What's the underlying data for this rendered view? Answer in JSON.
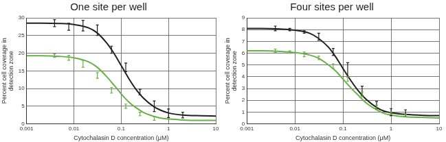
{
  "chart_data": [
    {
      "type": "line",
      "title": "One site per well",
      "xlabel": "Cytochalasin D concentration (μM)",
      "ylabel": [
        "Percent cell coverage in",
        "detection zone"
      ],
      "log": "x",
      "grid": true,
      "xlim": [
        0.001,
        10
      ],
      "xticks": [
        0.001,
        0.01,
        0.1,
        1,
        10
      ],
      "ylim": [
        0,
        30
      ],
      "yticks": [
        0,
        5,
        10,
        15,
        20,
        25,
        30
      ],
      "series": [
        {
          "type": "line",
          "color": "#231f20",
          "x": [
            0.001,
            0.002,
            0.005,
            0.01,
            0.02,
            0.03,
            0.05,
            0.07,
            0.1,
            0.15,
            0.2,
            0.3,
            0.5,
            0.7,
            1,
            2,
            5,
            10
          ],
          "values": [
            28.5,
            28.5,
            28.4,
            28.1,
            27.2,
            25.9,
            22.8,
            20,
            16.5,
            12.5,
            10,
            7.2,
            4.8,
            3.8,
            3.1,
            2.5,
            2.3,
            2.2
          ]
        },
        {
          "type": "line",
          "color": "#66b245",
          "x": [
            0.001,
            0.002,
            0.005,
            0.01,
            0.02,
            0.03,
            0.05,
            0.07,
            0.1,
            0.15,
            0.2,
            0.3,
            0.5,
            0.7,
            1,
            2,
            5,
            10
          ],
          "values": [
            19.3,
            19.3,
            19.1,
            18.7,
            17.6,
            16.2,
            13.3,
            11,
            8.5,
            6,
            4.7,
            3.2,
            2.1,
            1.6,
            1.4,
            1.1,
            1,
            1
          ]
        },
        {
          "type": "scatter",
          "marker": "none",
          "color": "#231f20",
          "x": [
            0.0039,
            0.0078,
            0.0156,
            0.0313,
            0.0625,
            0.125,
            0.25,
            0.5,
            1,
            2
          ],
          "values": [
            28.5,
            27.5,
            27.8,
            26.5,
            21,
            16,
            9,
            5,
            3,
            2.5
          ],
          "errors": [
            1,
            1,
            1.5,
            1.5,
            1,
            1.2,
            0.8,
            1.5,
            1.2,
            0.8
          ]
        },
        {
          "type": "scatter",
          "marker": "none",
          "color": "#66b245",
          "x": [
            0.0039,
            0.0078,
            0.0156,
            0.0313,
            0.0625,
            0.125,
            0.25,
            0.5
          ],
          "values": [
            19.3,
            18.7,
            17,
            13.7,
            9.5,
            5,
            2.8,
            1.5
          ],
          "errors": [
            0.5,
            0.7,
            1,
            0.8,
            0.8,
            0.6,
            0.5,
            0.5
          ]
        }
      ]
    },
    {
      "type": "line",
      "title": "Four sites per well",
      "xlabel": "Cytochalasin D concentration (μM)",
      "ylabel": [
        "Percent cell coverage in",
        "detection zone"
      ],
      "log": "x",
      "grid": true,
      "xlim": [
        0.001,
        10
      ],
      "xticks": [
        0.001,
        0.01,
        0.1,
        1,
        10
      ],
      "ylim": [
        0,
        9
      ],
      "yticks": [
        0,
        1,
        2,
        3,
        4,
        5,
        6,
        7,
        8,
        9
      ],
      "series": [
        {
          "type": "line",
          "color": "#231f20",
          "x": [
            0.001,
            0.002,
            0.005,
            0.01,
            0.02,
            0.03,
            0.05,
            0.07,
            0.1,
            0.15,
            0.2,
            0.3,
            0.5,
            0.7,
            1,
            2,
            5,
            10
          ],
          "values": [
            8.1,
            8.1,
            8.05,
            7.95,
            7.7,
            7.3,
            6.5,
            5.7,
            4.7,
            3.6,
            2.9,
            2.1,
            1.4,
            1.1,
            0.95,
            0.8,
            0.72,
            0.7
          ]
        },
        {
          "type": "line",
          "color": "#66b245",
          "x": [
            0.001,
            0.002,
            0.005,
            0.01,
            0.02,
            0.03,
            0.05,
            0.07,
            0.1,
            0.15,
            0.2,
            0.3,
            0.5,
            0.7,
            1,
            2,
            5,
            10
          ],
          "values": [
            6.2,
            6.2,
            6.15,
            6.05,
            5.85,
            5.6,
            5,
            4.5,
            3.8,
            3,
            2.5,
            1.8,
            1.2,
            0.9,
            0.75,
            0.6,
            0.55,
            0.5
          ]
        },
        {
          "type": "scatter",
          "marker": "none",
          "color": "#231f20",
          "x": [
            0.0039,
            0.0078,
            0.0156,
            0.0313,
            0.0625,
            0.125,
            0.25,
            0.5,
            1,
            2
          ],
          "values": [
            8.1,
            8,
            7.8,
            7.4,
            6.1,
            4.6,
            2.8,
            1.6,
            1,
            0.9
          ],
          "errors": [
            0.2,
            0.1,
            0.1,
            0.3,
            0.3,
            0.6,
            0.4,
            0.3,
            0.3,
            0.3
          ]
        },
        {
          "type": "scatter",
          "marker": "none",
          "color": "#66b245",
          "x": [
            0.0039,
            0.0078,
            0.0156,
            0.0313,
            0.0625,
            0.125,
            0.25,
            0.5,
            1,
            2
          ],
          "values": [
            6.2,
            6.1,
            5.9,
            5.6,
            4.9,
            3.8,
            2.5,
            1.4,
            0.9,
            0.7
          ],
          "errors": [
            0.15,
            0.1,
            0.2,
            0.15,
            0.2,
            0.2,
            0.2,
            0.2,
            0.1,
            0.1
          ]
        }
      ]
    }
  ]
}
